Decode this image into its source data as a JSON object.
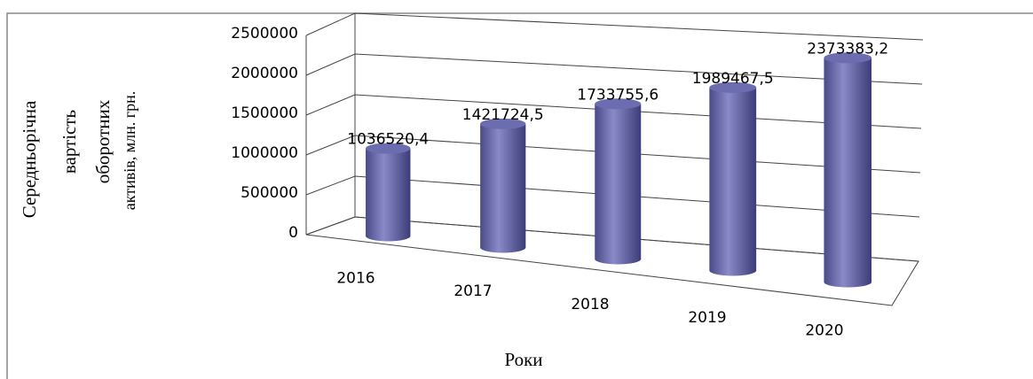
{
  "chart_data": {
    "type": "bar3d",
    "ylabel_lines": [
      "Середньорічна",
      "вартість",
      "оборотних",
      "активів, млн. грн."
    ],
    "xlabel": "Роки",
    "categories": [
      "2016",
      "2017",
      "2018",
      "2019",
      "2020"
    ],
    "values": [
      1036520.4,
      1421724.5,
      1733755.6,
      1989467.5,
      2373383.2
    ],
    "value_labels": [
      "1036520,4",
      "1421724,5",
      "1733755,6",
      "1989467,5",
      "2373383,2"
    ],
    "color": "#6a6aa8",
    "ylim": [
      0,
      2500000
    ],
    "yticks": [
      0,
      500000,
      1000000,
      1500000,
      2000000,
      2500000
    ],
    "grid": true
  }
}
